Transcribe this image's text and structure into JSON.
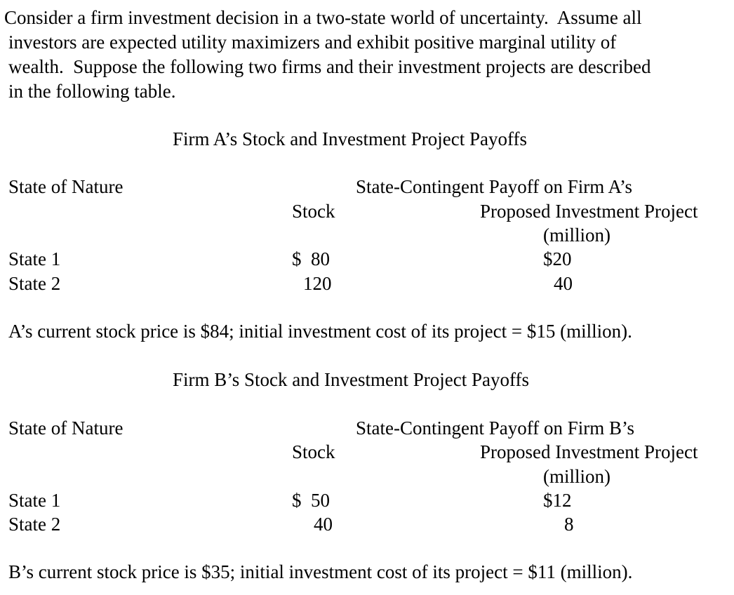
{
  "intro": {
    "line1": "Consider a firm investment decision in a two-state world of uncertainty.  Assume all",
    "line2": "investors are expected utility maximizers and exhibit positive marginal utility of",
    "line3": "wealth.  Suppose the following two firms and their investment projects are described",
    "line4": "in the following table."
  },
  "firm_a": {
    "title": "Firm A’s Stock and Investment Project Payoffs",
    "state_header": "State of Nature",
    "payoff_header_1": "State-Contingent Payoff on Firm A’s",
    "stock_header": "Stock",
    "payoff_header_2": "Proposed Investment Project",
    "payoff_header_3": "(million)",
    "rows": [
      {
        "state": "State 1",
        "stock": "$  80",
        "project": "$20"
      },
      {
        "state": "State 2",
        "stock": "120",
        "project": "40"
      }
    ],
    "note": "A’s current stock price is $84; initial investment cost of its project = $15 (million)."
  },
  "firm_b": {
    "title": "Firm B’s Stock and Investment Project Payoffs",
    "state_header": "State of Nature",
    "payoff_header_1": "State-Contingent Payoff on Firm B’s",
    "stock_header": "Stock",
    "payoff_header_2": "Proposed Investment Project",
    "payoff_header_3": "(million)",
    "rows": [
      {
        "state": "State 1",
        "stock": "$  50",
        "project": "$12"
      },
      {
        "state": "State 2",
        "stock": "40",
        "project": "8"
      }
    ],
    "note": "B’s current stock price is $35; initial investment cost of its project = $11 (million)."
  }
}
